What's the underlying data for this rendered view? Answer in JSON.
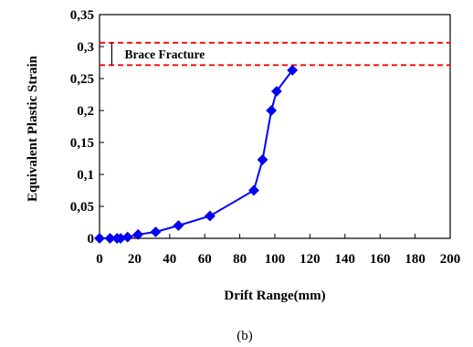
{
  "chart_data": {
    "type": "line",
    "title": "",
    "xlabel": "Drift Range(mm)",
    "ylabel": "Equivalent Plastic Strain",
    "xlim": [
      0,
      200
    ],
    "ylim": [
      0,
      0.35
    ],
    "x_ticks": [
      "0",
      "20",
      "40",
      "60",
      "80",
      "100",
      "120",
      "140",
      "160",
      "180",
      "200"
    ],
    "y_ticks": [
      "0",
      "0,05",
      "0,1",
      "0,15",
      "0,2",
      "0,25",
      "0,3",
      "0,35"
    ],
    "grid": false,
    "series": [
      {
        "color": "#0000ff",
        "marker": "diamond",
        "x": [
          0,
          6,
          10,
          12,
          16,
          22,
          32,
          45,
          63,
          88,
          93,
          98,
          101,
          110
        ],
        "y": [
          0,
          0,
          0,
          0,
          0.002,
          0.006,
          0.01,
          0.02,
          0.035,
          0.075,
          0.123,
          0.2,
          0.23,
          0.263
        ]
      }
    ],
    "reference_lines": [
      {
        "y": 0.306,
        "color": "#ff0000",
        "style": "dashed"
      },
      {
        "y": 0.271,
        "color": "#ff0000",
        "style": "dashed"
      }
    ],
    "annotation": {
      "text": "Brace Fracture",
      "x": 7,
      "y_low": 0.271,
      "y_high": 0.306
    }
  },
  "caption": "(b)"
}
